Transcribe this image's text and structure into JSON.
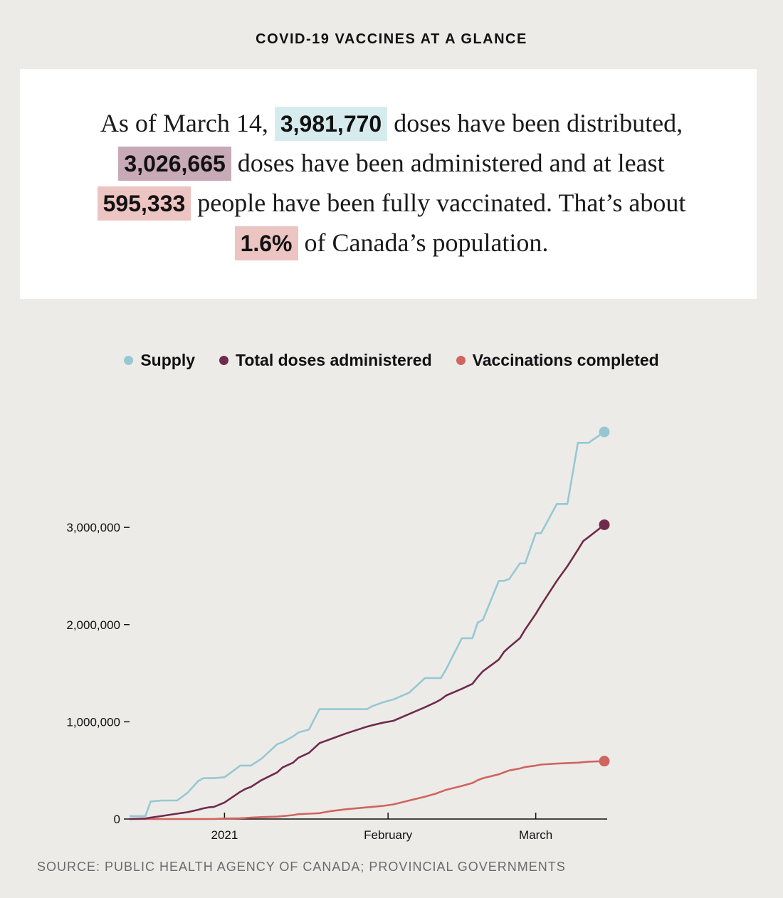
{
  "header": {
    "title": "COVID-19 VACCINES AT A GLANCE"
  },
  "summary": {
    "prefix": "As of March 14,",
    "distributed_value": "3,981,770",
    "distributed_text": "doses have been distributed,",
    "administered_value": "3,026,665",
    "administered_text": "doses have been administered and at least",
    "fully_value": "595,333",
    "fully_text": "people have been fully vaccinated. That’s about",
    "percent_value": "1.6%",
    "percent_text": "of Canada’s population."
  },
  "colors": {
    "supply": "#96c8d3",
    "administered": "#6e2b4c",
    "completed": "#d0645f",
    "highlight_supply": "#d6ebee",
    "highlight_admin": "#c8a9b6",
    "highlight_full": "#ecc4c2"
  },
  "chart_data": {
    "type": "line",
    "legend_position": "top-center",
    "grid": false,
    "x": [
      "2020-12-14",
      "2020-12-17",
      "2020-12-18",
      "2020-12-20",
      "2020-12-23",
      "2020-12-25",
      "2020-12-27",
      "2020-12-28",
      "2020-12-29",
      "2020-12-30",
      "2021-01-01",
      "2021-01-04",
      "2021-01-05",
      "2021-01-06",
      "2021-01-08",
      "2021-01-11",
      "2021-01-12",
      "2021-01-14",
      "2021-01-15",
      "2021-01-17",
      "2021-01-19",
      "2021-01-20",
      "2021-01-21",
      "2021-01-24",
      "2021-01-28",
      "2021-01-29",
      "2021-01-31",
      "2021-02-02",
      "2021-02-05",
      "2021-02-08",
      "2021-02-10",
      "2021-02-11",
      "2021-02-12",
      "2021-02-15",
      "2021-02-17",
      "2021-02-18",
      "2021-02-19",
      "2021-02-22",
      "2021-02-23",
      "2021-02-24",
      "2021-02-26",
      "2021-02-27",
      "2021-03-01",
      "2021-03-02",
      "2021-03-05",
      "2021-03-07",
      "2021-03-09",
      "2021-03-10",
      "2021-03-11",
      "2021-03-14"
    ],
    "series": [
      {
        "name": "Supply",
        "values": [
          30000,
          30000,
          180000,
          190000,
          190000,
          270000,
          390000,
          420000,
          420000,
          420000,
          430000,
          550000,
          550000,
          550000,
          620000,
          770000,
          790000,
          850000,
          890000,
          920000,
          1130000,
          1130000,
          1130000,
          1130000,
          1130000,
          1160000,
          1200000,
          1230000,
          1300000,
          1450000,
          1450000,
          1450000,
          1540000,
          1860000,
          1860000,
          2020000,
          2050000,
          2450000,
          2450000,
          2470000,
          2630000,
          2630000,
          2940000,
          2940000,
          3240000,
          3240000,
          3870000,
          3870000,
          3870000,
          3981770
        ]
      },
      {
        "name": "Total doses administered",
        "values": [
          0,
          5000,
          15000,
          30000,
          55000,
          70000,
          95000,
          110000,
          120000,
          125000,
          170000,
          280000,
          310000,
          330000,
          400000,
          480000,
          530000,
          580000,
          630000,
          680000,
          780000,
          800000,
          820000,
          880000,
          950000,
          965000,
          990000,
          1010000,
          1080000,
          1150000,
          1200000,
          1230000,
          1270000,
          1340000,
          1390000,
          1460000,
          1520000,
          1640000,
          1720000,
          1770000,
          1860000,
          1950000,
          2110000,
          2200000,
          2450000,
          2600000,
          2770000,
          2860000,
          2900000,
          3026665
        ]
      },
      {
        "name": "Vaccinations completed",
        "values": [
          0,
          0,
          0,
          0,
          0,
          0,
          0,
          0,
          0,
          0,
          5000,
          8000,
          10000,
          15000,
          20000,
          25000,
          30000,
          40000,
          50000,
          55000,
          60000,
          70000,
          80000,
          100000,
          120000,
          125000,
          135000,
          150000,
          190000,
          230000,
          260000,
          280000,
          300000,
          340000,
          370000,
          400000,
          420000,
          460000,
          480000,
          500000,
          520000,
          535000,
          550000,
          560000,
          570000,
          575000,
          580000,
          585000,
          590000,
          595333
        ]
      }
    ],
    "y_ticks": [
      0,
      1000000,
      2000000,
      3000000
    ],
    "y_tick_labels": [
      "0",
      "1,000,000",
      "2,000,000",
      "3,000,000"
    ],
    "x_ticks": [
      "2021-01-01",
      "2021-02-01",
      "2021-03-01"
    ],
    "x_tick_labels": [
      "2021",
      "February",
      "March"
    ],
    "xlim": [
      "2020-12-14",
      "2021-03-14"
    ],
    "ylim": [
      0,
      4000000
    ]
  },
  "source": "SOURCE: PUBLIC HEALTH AGENCY OF CANADA; PROVINCIAL GOVERNMENTS"
}
